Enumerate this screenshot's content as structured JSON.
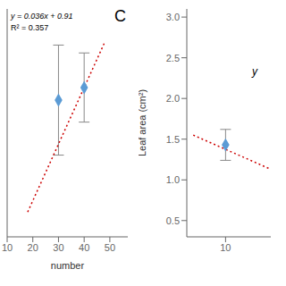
{
  "chart_data": [
    {
      "type": "scatter",
      "xlabel": "number",
      "xlim": [
        10,
        57
      ],
      "xticks": [
        10,
        20,
        30,
        40,
        50
      ],
      "ylim": [
        1.4,
        2.85
      ],
      "tick_labels": "x",
      "series": [
        {
          "type": "scatter",
          "marker": "diamond",
          "color": "#5b9bd5",
          "x": [
            30,
            40
          ],
          "values": [
            2.27,
            2.35
          ],
          "errors": [
            0.35,
            0.22
          ]
        },
        {
          "type": "line",
          "line_style": "dotted",
          "color": "#cc0000",
          "x": [
            18,
            48
          ],
          "values": [
            1.558,
            2.638
          ]
        }
      ],
      "annotations": [
        "y = 0.036x + 0.91",
        "R² = 0.357"
      ],
      "panel_label": "C"
    },
    {
      "type": "scatter",
      "ylabel": "Leaf area (cm²)",
      "xlim": [
        4,
        17
      ],
      "xticks": [
        10
      ],
      "ylim": [
        0.3,
        3.1
      ],
      "yticks": [
        0.5,
        {
          "value": 1,
          "label": "1.0"
        },
        1.5,
        {
          "value": 2,
          "label": "2.0"
        },
        2.5,
        {
          "value": 3,
          "label": "3.0"
        }
      ],
      "series": [
        {
          "type": "scatter",
          "marker": "diamond",
          "color": "#5b9bd5",
          "x": [
            10
          ],
          "values": [
            1.43
          ],
          "errors": [
            0.19
          ]
        },
        {
          "type": "line",
          "line_style": "dotted",
          "color": "#cc0000",
          "x": [
            5,
            17
          ],
          "values": [
            1.55,
            1.13
          ]
        }
      ],
      "annotations": [
        "y"
      ]
    }
  ]
}
